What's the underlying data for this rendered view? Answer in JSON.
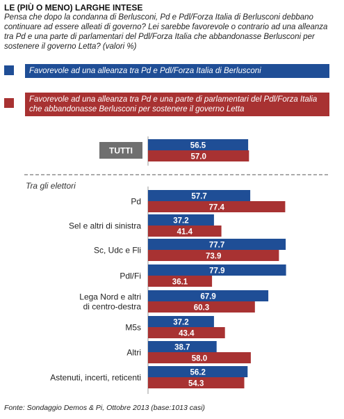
{
  "title": "LE (PIÙ O MENO) LARGHE INTESE",
  "question": "Pensa che dopo la condanna di Berlusconi, Pd e Pdl/Forza Italia di Berlusconi debbano continuare ad essere alleati di governo? Lei sarebbe favorevole o contrario ad una alleanza tra Pd e  una parte di parlamentari del Pdl/Forza Italia che abbandonasse Berlusconi per sostenere il governo Letta? (valori %)",
  "footer": "Fonte: Sondaggio Demos & Pi, Ottobre 2013 (base:1013 casi)",
  "colors": {
    "series1": "#1f4e96",
    "series2": "#a83232",
    "tutti_box": "#6f6f6f",
    "divider": "#555555"
  },
  "chart_data": {
    "type": "bar",
    "orientation": "horizontal",
    "xlim": [
      0,
      100
    ],
    "series": [
      {
        "name": "Favorevole ad una alleanza tra Pd e Pdl/Forza Italia di Berlusconi",
        "values": [
          56.5,
          57.7,
          37.2,
          77.7,
          77.9,
          67.9,
          37.2,
          38.7,
          56.2
        ]
      },
      {
        "name": "Favorevole ad una alleanza tra Pd e una parte di parlamentari del Pdl/Forza Italia che abbandonasse Berlusconi per sostenere il governo Letta",
        "values": [
          57.0,
          77.4,
          41.4,
          73.9,
          36.1,
          60.3,
          43.4,
          58.0,
          54.3
        ]
      }
    ],
    "categories": [
      "TUTTI",
      "Pd",
      "Sel e altri di sinistra",
      "Sc, Udc e Fli",
      "Pdl/Fi",
      "Lega Nord e altri di centro-destra",
      "M5s",
      "Altri",
      "Astenuti, incerti, reticenti"
    ],
    "category_lines": [
      [
        "TUTTI"
      ],
      [
        "Pd"
      ],
      [
        "Sel e altri di sinistra"
      ],
      [
        "Sc, Udc e Fli"
      ],
      [
        "Pdl/Fi"
      ],
      [
        "Lega Nord e altri",
        "di centro-destra"
      ],
      [
        "M5s"
      ],
      [
        "Altri"
      ],
      [
        "Astenuti, incerti, reticenti"
      ]
    ],
    "group_heading": "Tra gli elettori"
  }
}
